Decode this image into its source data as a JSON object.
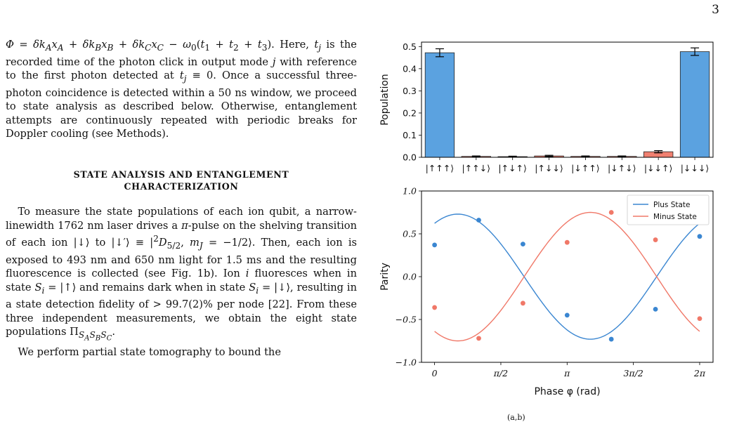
{
  "page_number": "3",
  "text": {
    "para1": "Φ = δk_A x_A + δk_B x_B + δk_C x_C − ω₀(t₁ + t₂ + t₃). Here, t_j is the recorded time of the photon click in output mode j with reference to the first photon detected at t_j ≡ 0. Once a successful three-photon coincidence is detected within a 50 ns window, we proceed to state analysis as described below. Otherwise, entanglement attempts are continuously repeated with periodic breaks for Doppler cooling (see Methods).",
    "heading_line1": "STATE ANALYSIS AND ENTANGLEMENT",
    "heading_line2": "CHARACTERIZATION",
    "para2": "To measure the state populations of each ion qubit, a narrow-linewidth 1762 nm laser drives a π-pulse on the shelving transition of each ion |↓⟩ to |↓′⟩ ≡ |²D₅/₂, m_J = −1/2⟩. Then, each ion is exposed to 493 nm and 650 nm light for 1.5 ms and the resulting fluorescence is collected (see Fig. 1b). Ion i fluoresces when in state S_i = |↑⟩ and remains dark when in state S_i = |↓⟩, resulting in a state detection fidelity of > 99.7(2)% per node [22]. From these three independent measurements, we obtain the eight state populations Π_{S_A S_B S_C}.",
    "para3": "We perform partial state tomography to bound the"
  },
  "chart_data": [
    {
      "type": "bar",
      "ylabel": "Population",
      "categories": [
        "|↑↑↑⟩",
        "|↑↑↓⟩",
        "|↑↓↑⟩",
        "|↑↓↓⟩",
        "|↓↑↑⟩",
        "|↓↑↓⟩",
        "|↓↓↑⟩",
        "|↓↓↓⟩"
      ],
      "values": [
        0.472,
        0.004,
        0.003,
        0.006,
        0.004,
        0.004,
        0.025,
        0.477
      ],
      "errors": [
        0.018,
        0.002,
        0.002,
        0.003,
        0.002,
        0.002,
        0.005,
        0.017
      ],
      "bar_colors": [
        "#5ba2e0",
        "#f08070",
        "#f08070",
        "#f08070",
        "#f08070",
        "#f08070",
        "#f08070",
        "#5ba2e0"
      ],
      "ylim": [
        0,
        0.52
      ],
      "yticks": [
        0.0,
        0.1,
        0.2,
        0.3,
        0.4,
        0.5
      ],
      "ytick_labels": [
        "0.0",
        "0.1",
        "0.2",
        "0.3",
        "0.4",
        "0.5"
      ]
    },
    {
      "type": "scatter",
      "xlabel": "Phase φ (rad)",
      "ylabel": "Parity",
      "xlim": [
        -0.31,
        6.6
      ],
      "ylim": [
        -1.0,
        1.0
      ],
      "xticks": [
        0,
        1.5708,
        3.1416,
        4.7124,
        6.2832
      ],
      "xtick_labels": [
        "0",
        "π/2",
        "π",
        "3π/2",
        "2π"
      ],
      "yticks": [
        -1.0,
        -0.5,
        0.0,
        0.5,
        1.0
      ],
      "ytick_labels": [
        "−1.0",
        "−0.5",
        "0.0",
        "0.5",
        "1.0"
      ],
      "legend_position": "top-right",
      "series": [
        {
          "name": "Plus State",
          "color": "#3a86d1",
          "x": [
            0,
            1.0472,
            2.0944,
            3.1416,
            4.1888,
            5.236,
            6.2832
          ],
          "y": [
            0.37,
            0.66,
            0.38,
            -0.45,
            -0.73,
            -0.38,
            0.47
          ],
          "fit": {
            "amplitude": 0.73,
            "phase_offset": 1.02,
            "offset": 0.0
          }
        },
        {
          "name": "Minus State",
          "color": "#f07868",
          "x": [
            0,
            1.0472,
            2.0944,
            3.1416,
            4.1888,
            5.236,
            6.2832
          ],
          "y": [
            -0.36,
            -0.72,
            -0.31,
            0.4,
            0.75,
            0.43,
            -0.49
          ],
          "fit": {
            "amplitude": 0.75,
            "phase_offset": 4.16,
            "offset": 0.0
          }
        }
      ]
    }
  ],
  "caption_fragment": "(a,b)"
}
